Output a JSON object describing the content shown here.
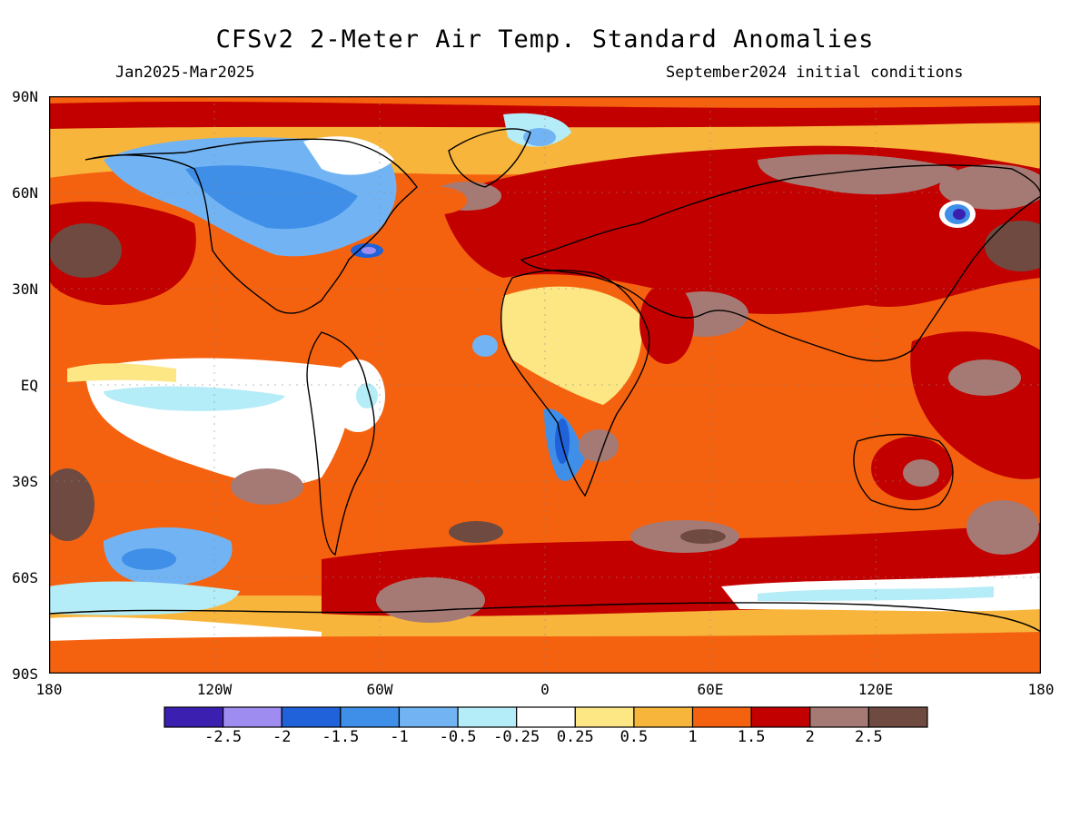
{
  "header": {
    "title": "CFSv2 2-Meter Air Temp. Standard Anomalies",
    "period": "Jan2025-Mar2025",
    "initial_conditions": "September2024 initial conditions"
  },
  "axes": {
    "lat_labels": [
      "90N",
      "60N",
      "30N",
      "EQ",
      "30S",
      "60S",
      "90S"
    ],
    "lon_labels": [
      "180",
      "120W",
      "60W",
      "0",
      "60E",
      "120E",
      "180"
    ]
  },
  "colorbar": {
    "colors": [
      "#3b1fb0",
      "#9f8cf0",
      "#1f62d9",
      "#3f8fe8",
      "#72b4f3",
      "#b4ecf7",
      "#ffffff",
      "#fde785",
      "#f8b53c",
      "#f5620f",
      "#c30000",
      "#a67a74",
      "#6e4a41"
    ],
    "labels": [
      "-2.5",
      "-2",
      "-1.5",
      "-1",
      "-0.5",
      "-0.25",
      "0.25",
      "0.5",
      "1",
      "1.5",
      "2",
      "2.5"
    ]
  }
}
